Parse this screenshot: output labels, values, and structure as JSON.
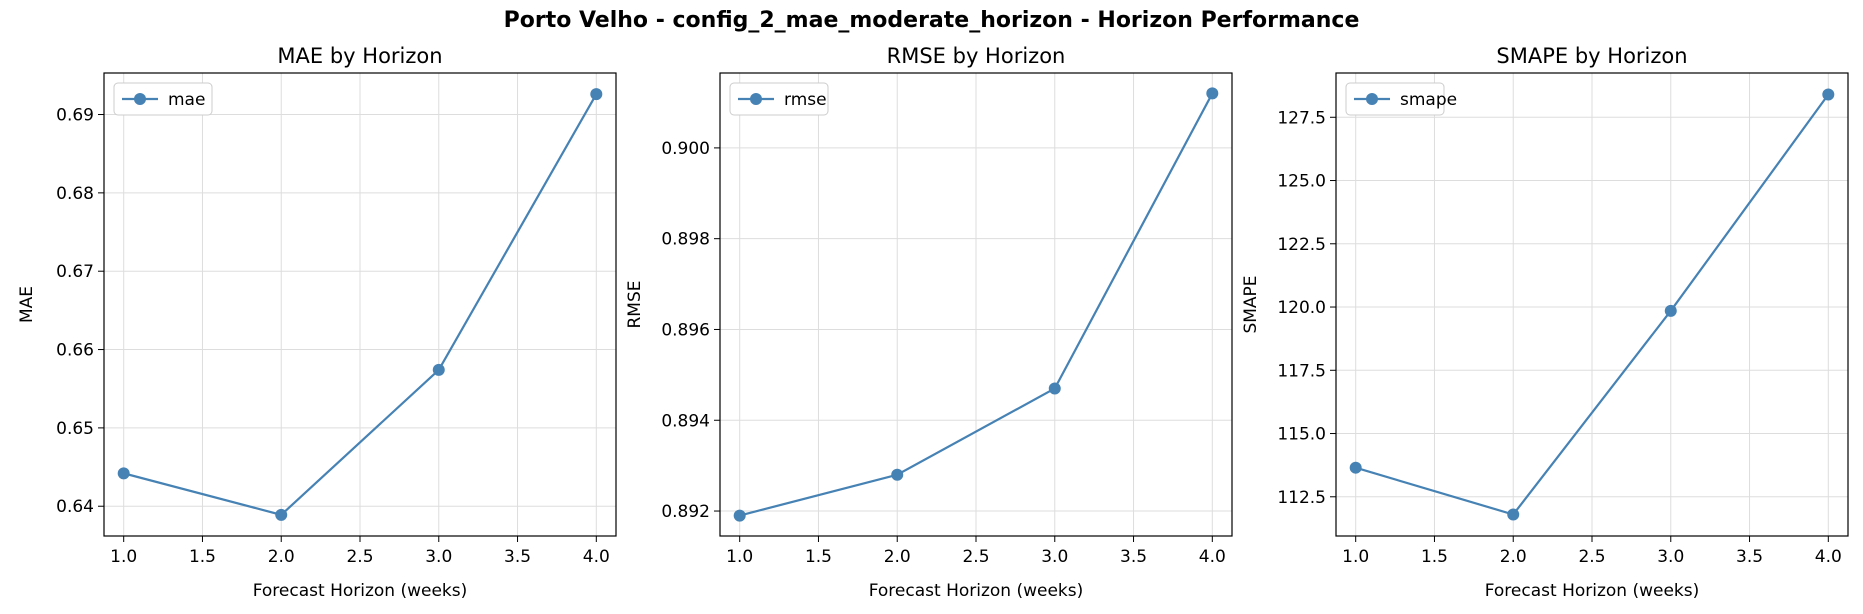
{
  "figure": {
    "title": "Porto Velho - config_2_mae_moderate_horizon - Horizon Performance",
    "line_color": "#4682b4",
    "grid_color": "#dddddd"
  },
  "chart_data": [
    {
      "type": "line",
      "title": "MAE by Horizon",
      "xlabel": "Forecast Horizon (weeks)",
      "ylabel": "MAE",
      "x": [
        1.0,
        2.0,
        3.0,
        4.0
      ],
      "series": [
        {
          "name": "mae",
          "values": [
            0.6442,
            0.6389,
            0.6574,
            0.6926
          ]
        }
      ],
      "xlim": [
        0.875,
        4.125
      ],
      "ylim": [
        0.6362,
        0.6953
      ],
      "xticks": [
        "1.0",
        "1.5",
        "2.0",
        "2.5",
        "3.0",
        "3.5",
        "4.0"
      ],
      "yticks": [
        "0.64",
        "0.65",
        "0.66",
        "0.67",
        "0.68",
        "0.69"
      ],
      "grid": true,
      "legend": "upper left"
    },
    {
      "type": "line",
      "title": "RMSE by Horizon",
      "xlabel": "Forecast Horizon (weeks)",
      "ylabel": "RMSE",
      "x": [
        1.0,
        2.0,
        3.0,
        4.0
      ],
      "series": [
        {
          "name": "rmse",
          "values": [
            0.8919,
            0.8928,
            0.8947,
            0.9012
          ]
        }
      ],
      "xlim": [
        0.875,
        4.125
      ],
      "ylim": [
        0.89145,
        0.90165
      ],
      "xticks": [
        "1.0",
        "1.5",
        "2.0",
        "2.5",
        "3.0",
        "3.5",
        "4.0"
      ],
      "yticks": [
        "0.892",
        "0.894",
        "0.896",
        "0.898",
        "0.900"
      ],
      "grid": true,
      "legend": "upper left"
    },
    {
      "type": "line",
      "title": "SMAPE by Horizon",
      "xlabel": "Forecast Horizon (weeks)",
      "ylabel": "SMAPE",
      "x": [
        1.0,
        2.0,
        3.0,
        4.0
      ],
      "series": [
        {
          "name": "smape",
          "values": [
            113.65,
            111.8,
            119.85,
            128.4
          ]
        }
      ],
      "xlim": [
        0.875,
        4.125
      ],
      "ylim": [
        110.95,
        129.25
      ],
      "xticks": [
        "1.0",
        "1.5",
        "2.0",
        "2.5",
        "3.0",
        "3.5",
        "4.0"
      ],
      "yticks": [
        "112.5",
        "115.0",
        "117.5",
        "120.0",
        "122.5",
        "125.0",
        "127.5"
      ],
      "grid": true,
      "legend": "upper left"
    }
  ]
}
